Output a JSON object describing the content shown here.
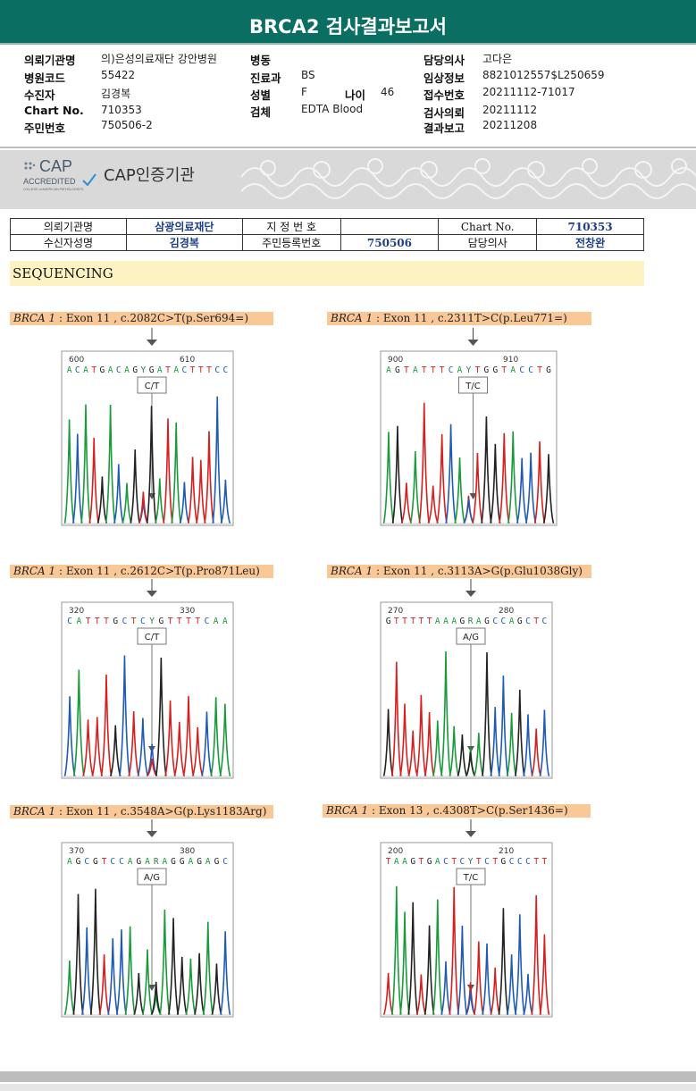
{
  "header": {
    "title": "BRCA2 검사결과보고서"
  },
  "info": {
    "col1": [
      {
        "label": "의뢰기관명",
        "value": "의)은성의료재단 강안병원"
      },
      {
        "label": "병원코드",
        "value": "55422"
      },
      {
        "label": "수진자",
        "value": "김경복"
      },
      {
        "label": "Chart No.",
        "value": "710353"
      },
      {
        "label": "주민번호",
        "value": "750506-2"
      }
    ],
    "col2": [
      {
        "label": "병동",
        "value": ""
      },
      {
        "label": "진료과",
        "value": "BS"
      },
      {
        "label": "성별",
        "value": "F"
      },
      {
        "label": "검체",
        "value": "EDTA Blood"
      }
    ],
    "age": {
      "label": "나이",
      "value": "46"
    },
    "col3": [
      {
        "label": "담당의사",
        "value": "고다은"
      },
      {
        "label": "임상정보",
        "value": "8821012557$L250659"
      },
      {
        "label": "접수번호",
        "value": "20211112-71017"
      },
      {
        "label": "검사의뢰",
        "value": "20211112"
      },
      {
        "label": "결과보고",
        "value": "20211208"
      }
    ]
  },
  "cap": {
    "logo_text": "CAP",
    "logo_sub": "ACCREDITED",
    "logo_small": "COLLEGE of AMERICAN PATHOLOGISTS",
    "title": "CAP인증기관"
  },
  "patient_table": {
    "r1": [
      "의뢰기관명",
      "삼광의료재단",
      "지 정 번 호",
      "",
      "Chart No.",
      "710353"
    ],
    "r2": [
      "수신자성명",
      "김경복",
      "주민등록번호",
      "750506",
      "담당의사",
      "전창완"
    ]
  },
  "section": "SEQUENCING",
  "panels": [
    {
      "gene": "BRCA 1",
      "desc": " : Exon 11 , c.2082C>T(p.Ser694=)",
      "pos1": "600",
      "pos2": "610",
      "seq": "ACATGACAGYGATACTTTCC",
      "call": "C/T"
    },
    {
      "gene": "BRCA 1",
      "desc": " : Exon 11 , c.2311T>C(p.Leu771=)",
      "pos1": "900",
      "pos2": "910",
      "seq": "AGTATTTCAYTGGTACCTG",
      "call": "T/C"
    },
    {
      "gene": "BRCA 1",
      "desc": " : Exon 11 , c.2612C>T(p.Pro871Leu)",
      "pos1": "320",
      "pos2": "330",
      "seq": "CATTTGCTCYGTTTTCAA",
      "call": "C/T"
    },
    {
      "gene": "BRCA 1",
      "desc": " : Exon 11 , c.3113A>G(p.Glu1038Gly)",
      "pos1": "270",
      "pos2": "280",
      "seq": "GTTTTTAAAGRAGCCAGCTC",
      "call": "A/G"
    },
    {
      "gene": "BRCA 1",
      "desc": " : Exon 11 , c.3548A>G(p.Lys1183Arg)",
      "pos1": "370",
      "pos2": "380",
      "seq": "AGCGTCCAGARAGGAGAGC",
      "call": "A/G"
    },
    {
      "gene": "BRCA 1",
      "desc": " : Exon 13 , c.4308T>C(p.Ser1436=)",
      "pos1": "200",
      "pos2": "210",
      "seq": "TAAGTGACTCYTCTGCCCTT",
      "call": "T/C"
    }
  ],
  "colors": {
    "A": "#1a9a3a",
    "C": "#1f5bb5",
    "G": "#222222",
    "T": "#d62020",
    "header": "#0b6e63"
  }
}
